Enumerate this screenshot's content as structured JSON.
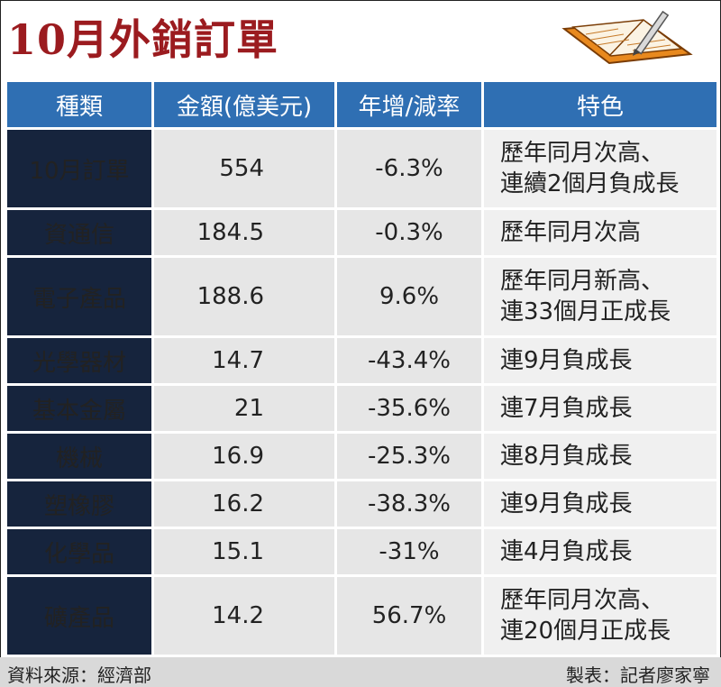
{
  "title": "10月外銷訂單",
  "chart_data": {
    "type": "table",
    "columns": [
      "種類",
      "金額(億美元)",
      "年增/減率",
      "特色"
    ],
    "rows": [
      {
        "category": "10月訂單",
        "amount": "554",
        "rate": "-6.3%",
        "feature": [
          "歷年同月次高、",
          "連續2個月負成長"
        ]
      },
      {
        "category": "資通信",
        "amount": "184.5",
        "rate": "-0.3%",
        "feature": [
          "歷年同月次高"
        ]
      },
      {
        "category": "電子產品",
        "amount": "188.6",
        "rate": "9.6%",
        "feature": [
          "歷年同月新高、",
          "連33個月正成長"
        ]
      },
      {
        "category": "光學器材",
        "amount": "14.7",
        "rate": "-43.4%",
        "feature": [
          "連9月負成長"
        ]
      },
      {
        "category": "基本金屬",
        "amount": "21",
        "rate": "-35.6%",
        "feature": [
          "連7月負成長"
        ]
      },
      {
        "category": "機械",
        "amount": "16.9",
        "rate": "-25.3%",
        "feature": [
          "連8月負成長"
        ]
      },
      {
        "category": "塑橡膠",
        "amount": "16.2",
        "rate": "-38.3%",
        "feature": [
          "連9月負成長"
        ]
      },
      {
        "category": "化學品",
        "amount": "15.1",
        "rate": "-31%",
        "feature": [
          "連4月負成長"
        ]
      },
      {
        "category": "礦產品",
        "amount": "14.2",
        "rate": "56.7%",
        "feature": [
          "歷年同月次高、",
          "連20個月正成長"
        ]
      }
    ]
  },
  "footer": {
    "source": "資料來源：經濟部",
    "credit": "製表：記者廖家寧"
  },
  "colors": {
    "title": "#9b1b1f",
    "header_bg": "#2f6fb3",
    "category_bg": "#16243d",
    "cell_bg": "#e6e6e6",
    "feature_bg": "#f0f0f0",
    "footer_bg": "#d9d9d9"
  },
  "icons": [
    "notebook-pencil-icon"
  ]
}
